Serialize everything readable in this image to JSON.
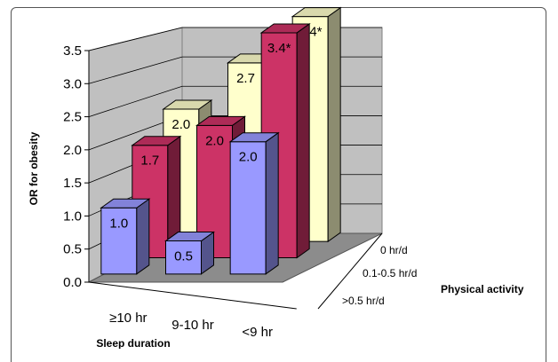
{
  "chart_data": {
    "type": "bar",
    "style": "3d-clustered-depth",
    "ylabel": "OR for obesity",
    "xlabel": "Sleep duration",
    "zlabel": "Physical activity",
    "ylim": [
      0,
      3.5
    ],
    "yticks": [
      "0.0",
      "0.5",
      "1.0",
      "1.5",
      "2.0",
      "2.5",
      "3.0",
      "3.5"
    ],
    "categories": [
      "≥10 hr",
      "9-10 hr",
      "<9 hr"
    ],
    "series": [
      {
        "name": ">0.5 hr/d",
        "values": [
          1.0,
          0.5,
          2.0
        ],
        "labels": [
          "1.0",
          "0.5",
          "2.0"
        ],
        "color": "#9999ff"
      },
      {
        "name": "0.1-0.5 hr/d",
        "values": [
          1.7,
          2.0,
          3.4
        ],
        "labels": [
          "1.7",
          "2.0",
          "3.4*"
        ],
        "color": "#cc3366"
      },
      {
        "name": "0 hr/d",
        "values": [
          2.0,
          2.7,
          3.4
        ],
        "labels": [
          "2.0",
          "2.7",
          "3.4*"
        ],
        "color": "#ffffcc"
      }
    ],
    "grid": true
  }
}
